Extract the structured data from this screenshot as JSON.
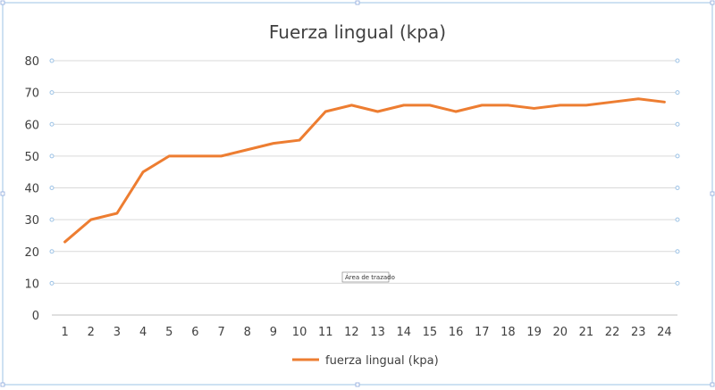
{
  "chart_data": {
    "type": "line",
    "title": "Fuerza lingual (kpa)",
    "categories": [
      "1",
      "2",
      "3",
      "4",
      "5",
      "6",
      "7",
      "8",
      "9",
      "10",
      "11",
      "12",
      "13",
      "14",
      "15",
      "16",
      "17",
      "18",
      "19",
      "20",
      "21",
      "22",
      "23",
      "24"
    ],
    "series": [
      {
        "name": "fuerza lingual (kpa)",
        "color": "#ED7D31",
        "values": [
          23,
          30,
          32,
          45,
          50,
          50,
          50,
          52,
          54,
          55,
          64,
          66,
          64,
          66,
          66,
          64,
          66,
          66,
          65,
          66,
          66,
          67,
          68,
          67
        ]
      }
    ],
    "ylim": [
      0,
      80
    ],
    "yticks": [
      0,
      10,
      20,
      30,
      40,
      50,
      60,
      70,
      80
    ],
    "grid": true,
    "legend": "bottom",
    "gridColor": "#D9D9D9",
    "selectionColor": "#9DC3E6"
  },
  "tooltip": {
    "text": "Área de trazado"
  }
}
